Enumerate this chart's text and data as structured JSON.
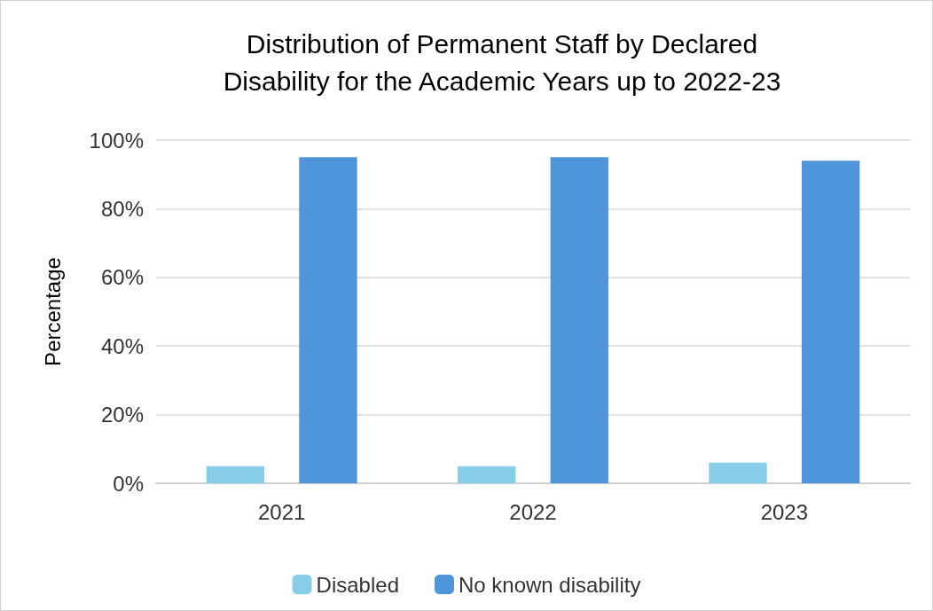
{
  "chart_data": {
    "type": "bar",
    "title": "Distribution of Permanent Staff by Declared\nDisability for the Academic Years up to 2022-23",
    "ylabel": "Percentage",
    "categories": [
      "2021",
      "2022",
      "2023"
    ],
    "series": [
      {
        "name": "Disabled",
        "color": "#87ceeb",
        "values": [
          5,
          5,
          6
        ]
      },
      {
        "name": "No known disability",
        "color": "#4f95da",
        "values": [
          95,
          95,
          94
        ]
      }
    ],
    "ylim": [
      0,
      100
    ],
    "yticks": [
      {
        "value": 0,
        "label": "0%"
      },
      {
        "value": 20,
        "label": "20%"
      },
      {
        "value": 40,
        "label": "40%"
      },
      {
        "value": 60,
        "label": "60%"
      },
      {
        "value": 80,
        "label": "80%"
      },
      {
        "value": 100,
        "label": "100%"
      }
    ],
    "grid": "y",
    "legend": "bottom"
  }
}
